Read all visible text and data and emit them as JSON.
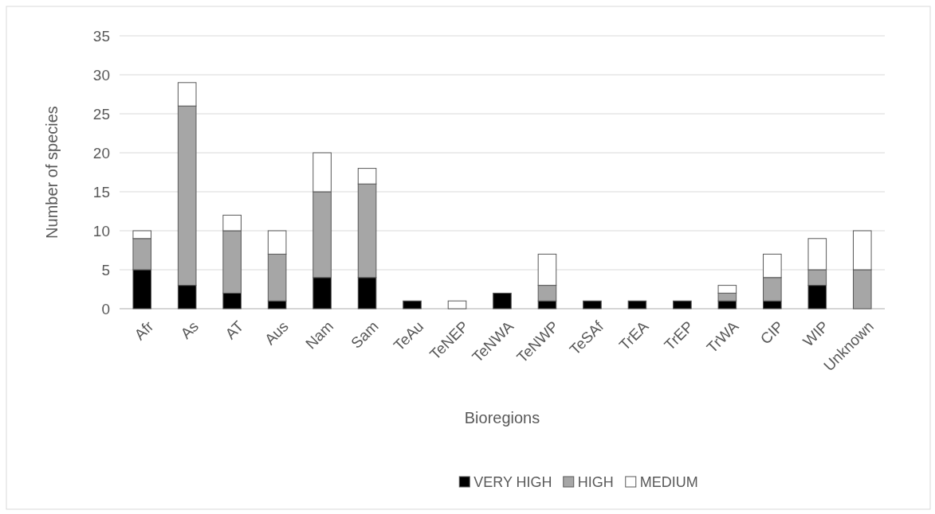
{
  "chart_data": {
    "type": "bar",
    "stacked": true,
    "xlabel": "Bioregions",
    "ylabel": "Number of species",
    "categories": [
      "Afr",
      "As",
      "AT",
      "Aus",
      "Nam",
      "Sam",
      "TeAu",
      "TeNEP",
      "TeNWA",
      "TeNWP",
      "TeSAf",
      "TrEA",
      "TrEP",
      "TrWA",
      "CIP",
      "WIP",
      "Unknown"
    ],
    "series": [
      {
        "name": "VERY HIGH",
        "color": "#000000",
        "values": [
          5,
          3,
          2,
          1,
          4,
          4,
          1,
          0,
          2,
          1,
          1,
          1,
          1,
          1,
          1,
          3,
          0
        ]
      },
      {
        "name": "HIGH",
        "color": "#a6a6a6",
        "values": [
          4,
          23,
          8,
          6,
          11,
          12,
          0,
          0,
          0,
          2,
          0,
          0,
          0,
          1,
          3,
          2,
          5
        ]
      },
      {
        "name": "MEDIUM",
        "color": "#ffffff",
        "values": [
          1,
          3,
          2,
          3,
          5,
          2,
          0,
          1,
          0,
          4,
          0,
          0,
          0,
          1,
          3,
          4,
          5
        ]
      }
    ],
    "ylim": [
      0,
      35
    ],
    "yticks": [
      0,
      5,
      10,
      15,
      20,
      25,
      30,
      35
    ],
    "grid": "y",
    "legend": "bottom"
  }
}
